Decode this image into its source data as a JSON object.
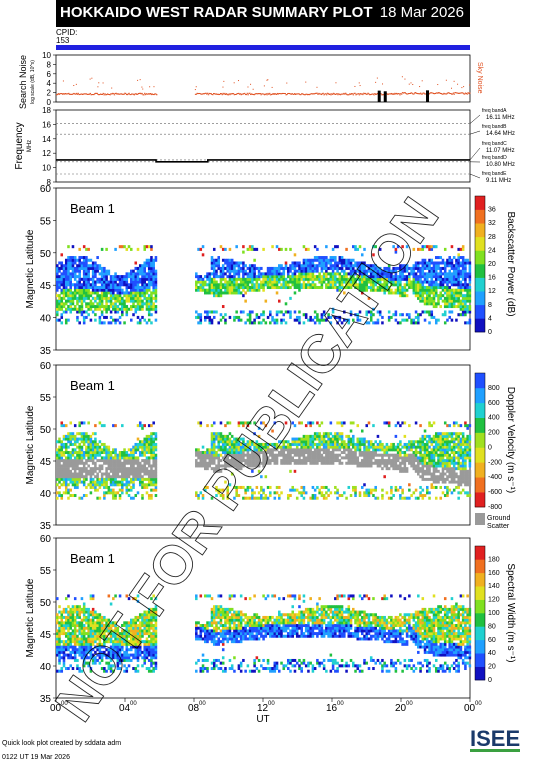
{
  "header": {
    "title": "HOKKAIDO WEST RADAR SUMMARY PLOT",
    "date": "18 Mar 2026"
  },
  "cpid": {
    "label": "CPID:",
    "value": "153"
  },
  "noise_panel": {
    "ylabel": "Search Noise",
    "ylabel_unit": "log scale (dB, 10^x)",
    "right_label": "Sky Noise",
    "ticks": [
      0,
      2,
      4,
      6,
      8,
      10
    ]
  },
  "freq_panel": {
    "ylabel": "Frequency",
    "unit": "MHz",
    "ticks": [
      8,
      10,
      12,
      14,
      16,
      18
    ],
    "bands": [
      {
        "name": "freq bandA",
        "value": "16.11 MHz"
      },
      {
        "name": "freq bandB",
        "value": "14.64 MHz"
      },
      {
        "name": "freq bandC",
        "value": "11.07 MHz"
      },
      {
        "name": "freq bandD",
        "value": "10.80 MHz"
      },
      {
        "name": "freq bandE",
        "value": "9.11 MHz"
      }
    ]
  },
  "beam_label": "Beam  1",
  "lat_ylabel": "Magnetic Latitude",
  "lat_ticks": [
    35,
    40,
    45,
    50,
    55,
    60
  ],
  "x_axis": {
    "ticks": [
      "00",
      "04",
      "08",
      "12",
      "16",
      "20",
      "00"
    ],
    "tick_sup": "00",
    "label": "UT"
  },
  "panels": [
    {
      "name": "power",
      "colorbar_label": "Backscatter Power (dB)",
      "ticks": [
        "0",
        "4",
        "8",
        "12",
        "16",
        "20",
        "24",
        "28",
        "32",
        "36"
      ]
    },
    {
      "name": "velocity",
      "colorbar_label": "Doppler Velocity (m s⁻¹)",
      "ticks": [
        "-800",
        "-600",
        "-400",
        "-200",
        "0",
        "200",
        "400",
        "600",
        "800"
      ],
      "ground": "Ground",
      "scatter": "Scatter"
    },
    {
      "name": "width",
      "colorbar_label": "Spectral Width (m s⁻¹)",
      "ticks": [
        "0",
        "20",
        "40",
        "60",
        "80",
        "100",
        "120",
        "140",
        "160",
        "180"
      ]
    }
  ],
  "watermark": "NOT FOR PUBLICATION",
  "footer": {
    "line1": "Quick look plot created by sddata adm",
    "line2": "0122 UT 19 Mar 2026"
  },
  "logo": {
    "text": "ISEE"
  },
  "colors": {
    "title_bg": "#000000",
    "cpid_bar": "#2020e0",
    "noise": "#e05020",
    "watermark": "#000000"
  },
  "chart_data": [
    {
      "type": "scatter",
      "title": "Search Noise",
      "x_range_hours": [
        0,
        24
      ],
      "ylim": [
        0,
        10
      ],
      "series": [
        {
          "name": "Sky Noise",
          "values": [
            {
              "t": 0.5,
              "v": 1.8
            },
            {
              "t": 2,
              "v": 1.7
            },
            {
              "t": 4,
              "v": 1.8
            },
            {
              "t": 5.8,
              "v": 1.9
            },
            {
              "t": 8,
              "v": 1.9
            },
            {
              "t": 10,
              "v": 1.8
            },
            {
              "t": 12,
              "v": 1.8
            },
            {
              "t": 14,
              "v": 1.9
            },
            {
              "t": 16,
              "v": 1.8
            },
            {
              "t": 18,
              "v": 1.8
            },
            {
              "t": 20,
              "v": 1.9
            },
            {
              "t": 22,
              "v": 2.0
            },
            {
              "t": 23.8,
              "v": 2.0
            }
          ]
        }
      ]
    },
    {
      "type": "line",
      "title": "Frequency",
      "x_range_hours": [
        0,
        24
      ],
      "ylim": [
        8,
        18
      ],
      "series": [
        {
          "name": "Frequency",
          "values": [
            {
              "t": 0,
              "v": 11.07
            },
            {
              "t": 5.8,
              "v": 11.07
            },
            {
              "t": 5.8,
              "v": 10.8
            },
            {
              "t": 8.8,
              "v": 10.8
            },
            {
              "t": 8.8,
              "v": 11.07
            },
            {
              "t": 24,
              "v": 11.07
            }
          ]
        }
      ]
    },
    {
      "type": "heatmap",
      "title": "Backscatter Power",
      "x_range_hours": [
        0,
        24
      ],
      "ylim": [
        35,
        60
      ],
      "colorbar": [
        0,
        36
      ],
      "data_gap_hours": [
        5.8,
        8.0
      ],
      "echo_region_lat": [
        39,
        51
      ]
    },
    {
      "type": "heatmap",
      "title": "Doppler Velocity",
      "x_range_hours": [
        0,
        24
      ],
      "ylim": [
        35,
        60
      ],
      "colorbar": [
        -800,
        800
      ],
      "data_gap_hours": [
        5.8,
        8.0
      ],
      "echo_region_lat": [
        39,
        51
      ]
    },
    {
      "type": "heatmap",
      "title": "Spectral Width",
      "x_range_hours": [
        0,
        24
      ],
      "ylim": [
        35,
        60
      ],
      "colorbar": [
        0,
        180
      ],
      "data_gap_hours": [
        5.8,
        8.0
      ],
      "echo_region_lat": [
        39,
        51
      ]
    }
  ]
}
